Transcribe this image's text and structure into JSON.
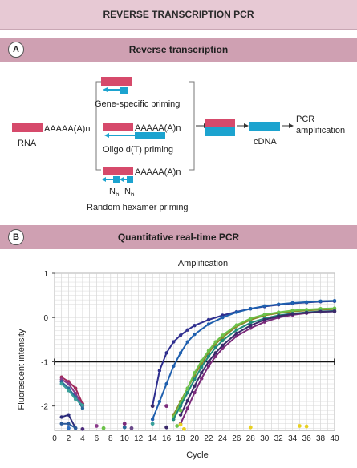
{
  "header": {
    "title": "REVERSE TRANSCRIPTION PCR"
  },
  "section_a": {
    "letter": "A",
    "title": "Reverse transcription",
    "rna_label": "RNA",
    "polyA": "AAAAA(A)n",
    "gene_specific": "Gene-specific priming",
    "oligo_dt": "Oligo d(T) priming",
    "random_hexamer": "Random hexamer priming",
    "n6": "N",
    "n6_sub": "6",
    "cdna": "cDNA",
    "pcr_line1": "PCR",
    "pcr_line2": "amplification"
  },
  "section_b": {
    "letter": "B",
    "title": "Quantitative real-time PCR"
  },
  "colors": {
    "rna": "#d64a6b",
    "dna": "#1ca3cf",
    "header_bg": "#e7c9d4",
    "section_bg": "#cfa0b2"
  },
  "chart_data": {
    "type": "line",
    "title": "Amplification",
    "xlabel": "Cycle",
    "ylabel": "Fluorescent intensity",
    "xlim": [
      0,
      40
    ],
    "ylim": [
      -2.55,
      1
    ],
    "xticks": [
      0,
      2,
      4,
      6,
      8,
      10,
      12,
      14,
      16,
      18,
      20,
      22,
      24,
      26,
      28,
      30,
      32,
      34,
      36,
      38,
      40
    ],
    "yticks": [
      1,
      0,
      -1,
      -2
    ],
    "threshold": -1,
    "grid": true,
    "series": [
      {
        "color": "#2f2f8f",
        "points": [
          [
            14,
            -2.0
          ],
          [
            15,
            -1.2
          ],
          [
            16,
            -0.8
          ],
          [
            17,
            -0.55
          ],
          [
            18,
            -0.4
          ],
          [
            19,
            -0.28
          ],
          [
            20,
            -0.18
          ],
          [
            22,
            -0.05
          ],
          [
            24,
            0.05
          ],
          [
            26,
            0.13
          ],
          [
            28,
            0.2
          ],
          [
            30,
            0.25
          ],
          [
            32,
            0.29
          ],
          [
            34,
            0.32
          ],
          [
            36,
            0.34
          ],
          [
            38,
            0.36
          ],
          [
            40,
            0.37
          ]
        ]
      },
      {
        "color": "#1e5fae",
        "points": [
          [
            14,
            -2.3
          ],
          [
            15,
            -1.9
          ],
          [
            16,
            -1.5
          ],
          [
            17,
            -1.1
          ],
          [
            18,
            -0.8
          ],
          [
            19,
            -0.55
          ],
          [
            20,
            -0.38
          ],
          [
            22,
            -0.15
          ],
          [
            24,
            0.0
          ],
          [
            26,
            0.12
          ],
          [
            28,
            0.2
          ],
          [
            30,
            0.26
          ],
          [
            32,
            0.3
          ],
          [
            34,
            0.33
          ],
          [
            36,
            0.35
          ],
          [
            38,
            0.37
          ],
          [
            40,
            0.38
          ]
        ]
      },
      {
        "color": "#8a8a2a",
        "points": [
          [
            17,
            -2.2
          ],
          [
            18,
            -1.9
          ],
          [
            19,
            -1.6
          ],
          [
            20,
            -1.3
          ],
          [
            21,
            -1.05
          ],
          [
            22,
            -0.8
          ],
          [
            23,
            -0.6
          ],
          [
            24,
            -0.45
          ],
          [
            26,
            -0.2
          ],
          [
            28,
            -0.05
          ],
          [
            30,
            0.05
          ],
          [
            32,
            0.1
          ],
          [
            34,
            0.14
          ],
          [
            36,
            0.16
          ],
          [
            38,
            0.18
          ],
          [
            40,
            0.19
          ]
        ]
      },
      {
        "color": "#6cc24a",
        "points": [
          [
            17,
            -2.25
          ],
          [
            18,
            -1.95
          ],
          [
            19,
            -1.6
          ],
          [
            20,
            -1.25
          ],
          [
            21,
            -0.98
          ],
          [
            22,
            -0.75
          ],
          [
            23,
            -0.55
          ],
          [
            24,
            -0.4
          ],
          [
            26,
            -0.17
          ],
          [
            28,
            -0.02
          ],
          [
            30,
            0.07
          ],
          [
            32,
            0.12
          ],
          [
            34,
            0.16
          ],
          [
            36,
            0.18
          ],
          [
            38,
            0.2
          ],
          [
            40,
            0.21
          ]
        ]
      },
      {
        "color": "#1f8a7a",
        "points": [
          [
            17,
            -2.3
          ],
          [
            18,
            -2.0
          ],
          [
            19,
            -1.7
          ],
          [
            20,
            -1.4
          ],
          [
            21,
            -1.12
          ],
          [
            22,
            -0.88
          ],
          [
            23,
            -0.68
          ],
          [
            24,
            -0.52
          ],
          [
            26,
            -0.28
          ],
          [
            28,
            -0.12
          ],
          [
            30,
            -0.02
          ],
          [
            32,
            0.05
          ],
          [
            34,
            0.09
          ],
          [
            36,
            0.12
          ],
          [
            38,
            0.14
          ],
          [
            40,
            0.15
          ]
        ]
      },
      {
        "color": "#7a2a7a",
        "points": [
          [
            18,
            -2.4
          ],
          [
            19,
            -2.05
          ],
          [
            20,
            -1.7
          ],
          [
            21,
            -1.38
          ],
          [
            22,
            -1.1
          ],
          [
            23,
            -0.88
          ],
          [
            24,
            -0.7
          ],
          [
            26,
            -0.42
          ],
          [
            28,
            -0.24
          ],
          [
            30,
            -0.1
          ],
          [
            32,
            0.0
          ],
          [
            34,
            0.06
          ],
          [
            36,
            0.1
          ],
          [
            38,
            0.13
          ],
          [
            40,
            0.14
          ]
        ]
      },
      {
        "color": "#3a2a6a",
        "points": [
          [
            18,
            -2.2
          ],
          [
            19,
            -1.88
          ],
          [
            20,
            -1.55
          ],
          [
            21,
            -1.25
          ],
          [
            22,
            -1.0
          ],
          [
            23,
            -0.8
          ],
          [
            24,
            -0.63
          ],
          [
            26,
            -0.36
          ],
          [
            28,
            -0.18
          ],
          [
            30,
            -0.05
          ],
          [
            32,
            0.03
          ],
          [
            34,
            0.08
          ],
          [
            36,
            0.11
          ],
          [
            38,
            0.13
          ],
          [
            40,
            0.14
          ]
        ]
      },
      {
        "color": "#a02a5a",
        "points": [
          [
            1,
            -1.35
          ],
          [
            2,
            -1.45
          ],
          [
            3,
            -1.6
          ],
          [
            4,
            -1.95
          ]
        ]
      },
      {
        "color": "#8a3a8a",
        "points": [
          [
            1,
            -1.4
          ],
          [
            2,
            -1.5
          ],
          [
            3,
            -1.72
          ],
          [
            4,
            -2.0
          ]
        ]
      },
      {
        "color": "#2a6a9a",
        "points": [
          [
            1,
            -1.45
          ],
          [
            2,
            -1.6
          ],
          [
            3,
            -1.8
          ],
          [
            4,
            -2.05
          ]
        ]
      },
      {
        "color": "#3aa09a",
        "points": [
          [
            1,
            -1.5
          ],
          [
            2,
            -1.65
          ],
          [
            3,
            -1.85
          ],
          [
            4,
            -1.98
          ]
        ]
      },
      {
        "color": "#2a2a7a",
        "points": [
          [
            1,
            -2.25
          ],
          [
            2,
            -2.2
          ],
          [
            3,
            -2.5
          ]
        ]
      },
      {
        "color": "#2a5a9a",
        "points": [
          [
            1,
            -2.4
          ],
          [
            2,
            -2.4
          ],
          [
            3,
            -2.5
          ]
        ]
      }
    ],
    "scatter_points": [
      [
        2,
        -2.5,
        "#2f6fbf"
      ],
      [
        4,
        -2.52,
        "#4a2a7a"
      ],
      [
        6,
        -2.45,
        "#8a3a8a"
      ],
      [
        7,
        -2.5,
        "#6cc24a"
      ],
      [
        10,
        -2.4,
        "#7a2a7a"
      ],
      [
        10,
        -2.48,
        "#2a6a9a"
      ],
      [
        11,
        -2.5,
        "#6a4a8a"
      ],
      [
        14,
        -2.4,
        "#3aa09a"
      ],
      [
        16,
        -2.48,
        "#3a2a6a"
      ],
      [
        17.5,
        -2.45,
        "#6cc24a"
      ],
      [
        18,
        -2.42,
        "#e8d020"
      ],
      [
        18.5,
        -2.52,
        "#e8d020"
      ],
      [
        28,
        -2.48,
        "#e8d020"
      ],
      [
        35,
        -2.45,
        "#e8d020"
      ],
      [
        36,
        -2.46,
        "#e8d020"
      ],
      [
        16,
        -2.0,
        "#7a2a7a"
      ],
      [
        14,
        -2.0,
        "#3a2a6a"
      ],
      [
        18,
        -2.1,
        "#6cc24a"
      ]
    ]
  }
}
